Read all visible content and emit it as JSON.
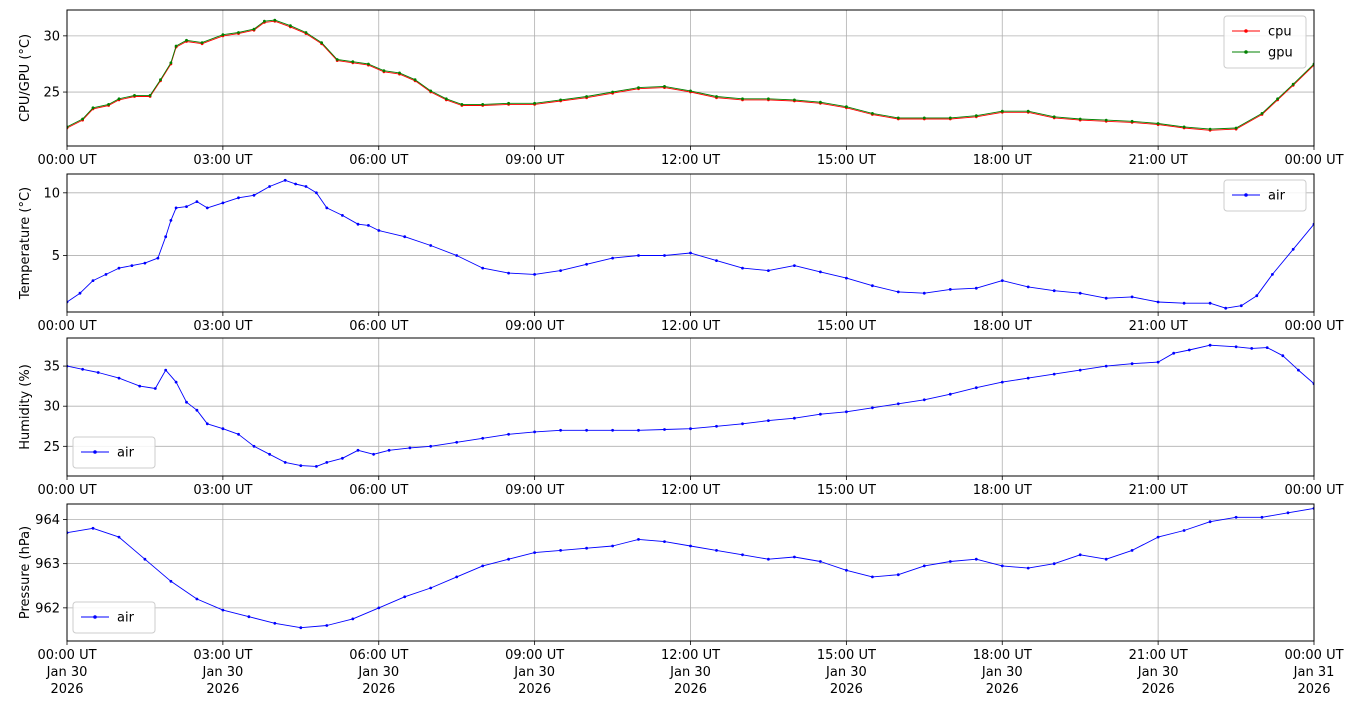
{
  "figure": {
    "background": "#ffffff",
    "grid_color": "#b0b0b0",
    "x_ticks": [
      "00:00 UT",
      "03:00 UT",
      "06:00 UT",
      "09:00 UT",
      "12:00 UT",
      "15:00 UT",
      "18:00 UT",
      "21:00 UT",
      "00:00 UT"
    ],
    "x_date_lines": [
      [
        "Jan 30",
        "2026"
      ],
      [
        "Jan 30",
        "2026"
      ],
      [
        "Jan 30",
        "2026"
      ],
      [
        "Jan 30",
        "2026"
      ],
      [
        "Jan 30",
        "2026"
      ],
      [
        "Jan 30",
        "2026"
      ],
      [
        "Jan 30",
        "2026"
      ],
      [
        "Jan 30",
        "2026"
      ],
      [
        "Jan 31",
        "2026"
      ]
    ]
  },
  "chart_data": [
    {
      "type": "line",
      "ylabel": "CPU/GPU (°C)",
      "ylim": [
        20.2,
        32.3
      ],
      "yticks": [
        25,
        30
      ],
      "x_unit": "hours since 00:00 UT Jan 30 2026",
      "xlim": [
        0,
        24
      ],
      "grid": true,
      "legend": "top-right",
      "series": [
        {
          "name": "cpu",
          "color": "#ff0000",
          "x": [
            0,
            0.3,
            0.5,
            0.8,
            1.0,
            1.3,
            1.6,
            1.8,
            2.0,
            2.1,
            2.3,
            2.6,
            3.0,
            3.3,
            3.6,
            3.8,
            4.0,
            4.3,
            4.6,
            4.9,
            5.2,
            5.5,
            5.8,
            6.1,
            6.4,
            6.7,
            7.0,
            7.3,
            7.6,
            8.0,
            8.5,
            9.0,
            9.5,
            10.0,
            10.5,
            11.0,
            11.5,
            12.0,
            12.5,
            13.0,
            13.5,
            14.0,
            14.5,
            15.0,
            15.5,
            16.0,
            16.5,
            17.0,
            17.5,
            18.0,
            18.5,
            19.0,
            19.5,
            20.0,
            20.5,
            21.0,
            21.5,
            22.0,
            22.5,
            23.0,
            23.3,
            23.6,
            24.0
          ],
          "y": [
            21.8,
            22.5,
            23.5,
            23.8,
            24.3,
            24.6,
            24.6,
            26.0,
            27.5,
            29.0,
            29.5,
            29.3,
            30.0,
            30.2,
            30.5,
            31.2,
            31.3,
            30.8,
            30.2,
            29.3,
            27.8,
            27.6,
            27.4,
            26.8,
            26.6,
            26.0,
            25.0,
            24.3,
            23.8,
            23.8,
            23.9,
            23.9,
            24.2,
            24.5,
            24.9,
            25.3,
            25.4,
            25.0,
            24.5,
            24.3,
            24.3,
            24.2,
            24.0,
            23.6,
            23.0,
            22.6,
            22.6,
            22.6,
            22.8,
            23.2,
            23.2,
            22.7,
            22.5,
            22.4,
            22.3,
            22.1,
            21.8,
            21.6,
            21.7,
            23.0,
            24.3,
            25.6,
            27.4
          ]
        },
        {
          "name": "gpu",
          "color": "#008000",
          "x": [
            0,
            0.3,
            0.5,
            0.8,
            1.0,
            1.3,
            1.6,
            1.8,
            2.0,
            2.1,
            2.3,
            2.6,
            3.0,
            3.3,
            3.6,
            3.8,
            4.0,
            4.3,
            4.6,
            4.9,
            5.2,
            5.5,
            5.8,
            6.1,
            6.4,
            6.7,
            7.0,
            7.3,
            7.6,
            8.0,
            8.5,
            9.0,
            9.5,
            10.0,
            10.5,
            11.0,
            11.5,
            12.0,
            12.5,
            13.0,
            13.5,
            14.0,
            14.5,
            15.0,
            15.5,
            16.0,
            16.5,
            17.0,
            17.5,
            18.0,
            18.5,
            19.0,
            19.5,
            20.0,
            20.5,
            21.0,
            21.5,
            22.0,
            22.5,
            23.0,
            23.3,
            23.6,
            24.0
          ],
          "y": [
            21.9,
            22.6,
            23.6,
            23.9,
            24.4,
            24.7,
            24.7,
            26.1,
            27.6,
            29.1,
            29.6,
            29.4,
            30.1,
            30.3,
            30.6,
            31.3,
            31.4,
            30.9,
            30.3,
            29.4,
            27.9,
            27.7,
            27.5,
            26.9,
            26.7,
            26.1,
            25.1,
            24.4,
            23.9,
            23.9,
            24.0,
            24.0,
            24.3,
            24.6,
            25.0,
            25.4,
            25.5,
            25.1,
            24.6,
            24.4,
            24.4,
            24.3,
            24.1,
            23.7,
            23.1,
            22.7,
            22.7,
            22.7,
            22.9,
            23.3,
            23.3,
            22.8,
            22.6,
            22.5,
            22.4,
            22.2,
            21.9,
            21.7,
            21.8,
            23.1,
            24.4,
            25.7,
            27.5
          ]
        }
      ]
    },
    {
      "type": "line",
      "ylabel": "Temperature (°C)",
      "ylim": [
        0.5,
        11.5
      ],
      "yticks": [
        5,
        10
      ],
      "xlim": [
        0,
        24
      ],
      "grid": true,
      "legend": "top-right",
      "series": [
        {
          "name": "air",
          "color": "#0000ff",
          "x": [
            0,
            0.25,
            0.5,
            0.75,
            1.0,
            1.25,
            1.5,
            1.75,
            1.9,
            2.0,
            2.1,
            2.3,
            2.5,
            2.7,
            3.0,
            3.3,
            3.6,
            3.9,
            4.2,
            4.4,
            4.6,
            4.8,
            5.0,
            5.3,
            5.6,
            5.8,
            6.0,
            6.5,
            7.0,
            7.5,
            8.0,
            8.5,
            9.0,
            9.5,
            10.0,
            10.5,
            11.0,
            11.5,
            12.0,
            12.5,
            13.0,
            13.5,
            14.0,
            14.5,
            15.0,
            15.5,
            16.0,
            16.5,
            17.0,
            17.5,
            18.0,
            18.5,
            19.0,
            19.5,
            20.0,
            20.5,
            21.0,
            21.5,
            22.0,
            22.3,
            22.6,
            22.9,
            23.2,
            23.6,
            24.0
          ],
          "y": [
            1.3,
            2.0,
            3.0,
            3.5,
            4.0,
            4.2,
            4.4,
            4.8,
            6.5,
            7.8,
            8.8,
            8.9,
            9.3,
            8.8,
            9.2,
            9.6,
            9.8,
            10.5,
            11.0,
            10.7,
            10.5,
            10.0,
            8.8,
            8.2,
            7.5,
            7.4,
            7.0,
            6.5,
            5.8,
            5.0,
            4.0,
            3.6,
            3.5,
            3.8,
            4.3,
            4.8,
            5.0,
            5.0,
            5.2,
            4.6,
            4.0,
            3.8,
            4.2,
            3.7,
            3.2,
            2.6,
            2.1,
            2.0,
            2.3,
            2.4,
            3.0,
            2.5,
            2.2,
            2.0,
            1.6,
            1.7,
            1.3,
            1.2,
            1.2,
            0.8,
            1.0,
            1.8,
            3.5,
            5.5,
            7.5
          ]
        }
      ]
    },
    {
      "type": "line",
      "ylabel": "Humidity (%)",
      "ylim": [
        21.3,
        38.5
      ],
      "yticks": [
        25,
        30,
        35
      ],
      "xlim": [
        0,
        24
      ],
      "grid": true,
      "legend": "bottom-left",
      "series": [
        {
          "name": "air",
          "color": "#0000ff",
          "x": [
            0,
            0.3,
            0.6,
            1.0,
            1.4,
            1.7,
            1.9,
            2.1,
            2.3,
            2.5,
            2.7,
            3.0,
            3.3,
            3.6,
            3.9,
            4.2,
            4.5,
            4.8,
            5.0,
            5.3,
            5.6,
            5.9,
            6.2,
            6.6,
            7.0,
            7.5,
            8.0,
            8.5,
            9.0,
            9.5,
            10.0,
            10.5,
            11.0,
            11.5,
            12.0,
            12.5,
            13.0,
            13.5,
            14.0,
            14.5,
            15.0,
            15.5,
            16.0,
            16.5,
            17.0,
            17.5,
            18.0,
            18.5,
            19.0,
            19.5,
            20.0,
            20.5,
            21.0,
            21.3,
            21.6,
            22.0,
            22.5,
            22.8,
            23.1,
            23.4,
            23.7,
            24.0
          ],
          "y": [
            35.0,
            34.6,
            34.2,
            33.5,
            32.5,
            32.2,
            34.5,
            33.0,
            30.5,
            29.5,
            27.8,
            27.2,
            26.5,
            25.0,
            24.0,
            23.0,
            22.6,
            22.5,
            23.0,
            23.5,
            24.5,
            24.0,
            24.5,
            24.8,
            25.0,
            25.5,
            26.0,
            26.5,
            26.8,
            27.0,
            27.0,
            27.0,
            27.0,
            27.1,
            27.2,
            27.5,
            27.8,
            28.2,
            28.5,
            29.0,
            29.3,
            29.8,
            30.3,
            30.8,
            31.5,
            32.3,
            33.0,
            33.5,
            34.0,
            34.5,
            35.0,
            35.3,
            35.5,
            36.6,
            37.0,
            37.6,
            37.4,
            37.2,
            37.3,
            36.3,
            34.5,
            32.8
          ]
        }
      ]
    },
    {
      "type": "line",
      "ylabel": "Pressure (hPa)",
      "ylim": [
        961.25,
        964.35
      ],
      "yticks": [
        962,
        963,
        964
      ],
      "xlim": [
        0,
        24
      ],
      "grid": true,
      "legend": "bottom-left",
      "series": [
        {
          "name": "air",
          "color": "#0000ff",
          "x": [
            0,
            0.5,
            1.0,
            1.5,
            2.0,
            2.5,
            3.0,
            3.5,
            4.0,
            4.5,
            5.0,
            5.5,
            6.0,
            6.5,
            7.0,
            7.5,
            8.0,
            8.5,
            9.0,
            9.5,
            10.0,
            10.5,
            11.0,
            11.5,
            12.0,
            12.5,
            13.0,
            13.5,
            14.0,
            14.5,
            15.0,
            15.5,
            16.0,
            16.5,
            17.0,
            17.5,
            18.0,
            18.5,
            19.0,
            19.5,
            20.0,
            20.5,
            21.0,
            21.5,
            22.0,
            22.5,
            23.0,
            23.5,
            24.0
          ],
          "y": [
            963.7,
            963.8,
            963.6,
            963.1,
            962.6,
            962.2,
            961.95,
            961.8,
            961.65,
            961.55,
            961.6,
            961.75,
            962.0,
            962.25,
            962.45,
            962.7,
            962.95,
            963.1,
            963.25,
            963.3,
            963.35,
            963.4,
            963.55,
            963.5,
            963.4,
            963.3,
            963.2,
            963.1,
            963.15,
            963.05,
            962.85,
            962.7,
            962.75,
            962.95,
            963.05,
            963.1,
            962.95,
            962.9,
            963.0,
            963.2,
            963.1,
            963.3,
            963.6,
            963.75,
            963.95,
            964.05,
            964.05,
            964.15,
            964.25
          ]
        }
      ]
    }
  ]
}
